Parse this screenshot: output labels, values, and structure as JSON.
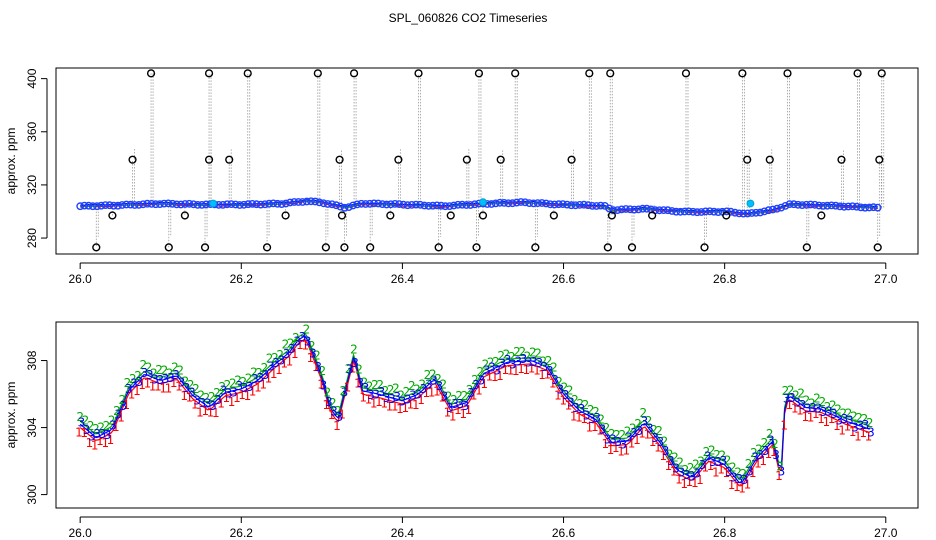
{
  "title": "SPL_060826  CO2 Timeseries",
  "chart_data": [
    {
      "type": "scatter",
      "name": "full-timeseries-panel",
      "xlabel": "",
      "ylabel": "approx. ppm",
      "xlim": [
        25.97,
        27.04
      ],
      "ylim": [
        268,
        408
      ],
      "xticks": [
        "26.0",
        "26.2",
        "26.4",
        "26.6",
        "26.8",
        "27.0"
      ],
      "yticks": [
        "280",
        "320",
        "360",
        "400"
      ],
      "series_colors": {
        "baseline_lines": [
          "#ff0000",
          "#00bb00",
          "#0000ff"
        ],
        "baseline_circles": "#1e40ff",
        "spikes": "#000000",
        "highlight": "#00bfff"
      },
      "baseline": {
        "x": [
          26.0,
          26.05,
          26.1,
          26.15,
          26.2,
          26.25,
          26.28,
          26.3,
          26.33,
          26.35,
          26.4,
          26.45,
          26.5,
          26.55,
          26.6,
          26.65,
          26.66,
          26.7,
          26.75,
          26.8,
          26.83,
          26.86,
          26.88,
          26.9,
          26.95,
          26.99
        ],
        "y": [
          304,
          305,
          306,
          305,
          305,
          306,
          308,
          307,
          303,
          306,
          305,
          304,
          306,
          307,
          305,
          304,
          301,
          302,
          300,
          300,
          298,
          301,
          305,
          305,
          304,
          303
        ]
      },
      "spikes": {
        "x": [
          26.02,
          26.04,
          26.065,
          26.088,
          26.11,
          26.13,
          26.155,
          26.16,
          26.16,
          26.185,
          26.208,
          26.232,
          26.255,
          26.295,
          26.305,
          26.322,
          26.325,
          26.328,
          26.34,
          26.36,
          26.385,
          26.395,
          26.42,
          26.445,
          26.46,
          26.48,
          26.492,
          26.495,
          26.5,
          26.522,
          26.54,
          26.565,
          26.588,
          26.61,
          26.632,
          26.655,
          26.658,
          26.66,
          26.685,
          26.71,
          26.752,
          26.775,
          26.802,
          26.822,
          26.828,
          26.856,
          26.878,
          26.902,
          26.92,
          26.945,
          26.965,
          26.99,
          26.992,
          26.995
        ],
        "y": [
          273,
          297,
          339,
          404,
          273,
          297,
          273,
          339,
          404,
          339,
          404,
          273,
          297,
          404,
          273,
          339,
          297,
          273,
          404,
          273,
          297,
          339,
          404,
          273,
          297,
          339,
          273,
          404,
          297,
          339,
          404,
          273,
          297,
          339,
          404,
          273,
          404,
          297,
          273,
          297,
          404,
          273,
          297,
          404,
          339,
          339,
          404,
          273,
          297,
          339,
          404,
          273,
          339,
          404
        ]
      },
      "highlight_points": {
        "x": [
          26.165,
          26.5,
          26.832
        ],
        "y": [
          306,
          307,
          306
        ]
      }
    },
    {
      "type": "line",
      "name": "zoomed-baseline-panel",
      "xlabel": "",
      "ylabel": "approx. ppm",
      "xlim": [
        25.97,
        27.04
      ],
      "ylim": [
        299.2,
        310.3
      ],
      "xticks": [
        "26.0",
        "26.2",
        "26.4",
        "26.6",
        "26.8",
        "27.0"
      ],
      "yticks": [
        "300",
        "304",
        "308"
      ],
      "series": [
        {
          "name": "1",
          "color": "#ff0000",
          "marker": "1",
          "offset": -0.5
        },
        {
          "name": "2",
          "color": "#00aa00",
          "marker": "2",
          "offset": 0.45
        },
        {
          "name": "3",
          "color": "#0000ff",
          "marker": "3",
          "offset": 0.0
        }
      ],
      "x": [
        26.0,
        26.02,
        26.04,
        26.06,
        26.08,
        26.1,
        26.12,
        26.14,
        26.16,
        26.18,
        26.2,
        26.22,
        26.24,
        26.26,
        26.27,
        26.28,
        26.3,
        26.31,
        26.32,
        26.34,
        26.35,
        26.37,
        26.4,
        26.42,
        26.44,
        26.46,
        26.48,
        26.5,
        26.53,
        26.56,
        26.58,
        26.6,
        26.62,
        26.64,
        26.66,
        26.68,
        26.7,
        26.72,
        26.74,
        26.76,
        26.78,
        26.8,
        26.82,
        26.84,
        26.86,
        26.87,
        26.875,
        26.88,
        26.9,
        26.92,
        26.95,
        26.98
      ],
      "y": [
        304.2,
        303.4,
        303.9,
        306.2,
        307.2,
        306.8,
        307.1,
        305.9,
        305.2,
        306.1,
        306.3,
        306.8,
        307.7,
        308.5,
        309.2,
        309.5,
        307.0,
        305.2,
        304.5,
        308.3,
        306.2,
        306.0,
        305.6,
        306.0,
        306.9,
        305.2,
        305.5,
        307.2,
        307.9,
        308.0,
        307.6,
        306.0,
        305.0,
        304.5,
        303.1,
        303.2,
        304.3,
        303.1,
        301.5,
        301.0,
        302.2,
        301.8,
        300.6,
        302.2,
        303.2,
        301.1,
        305.5,
        305.9,
        305.2,
        305.1,
        304.4,
        303.9
      ]
    }
  ]
}
